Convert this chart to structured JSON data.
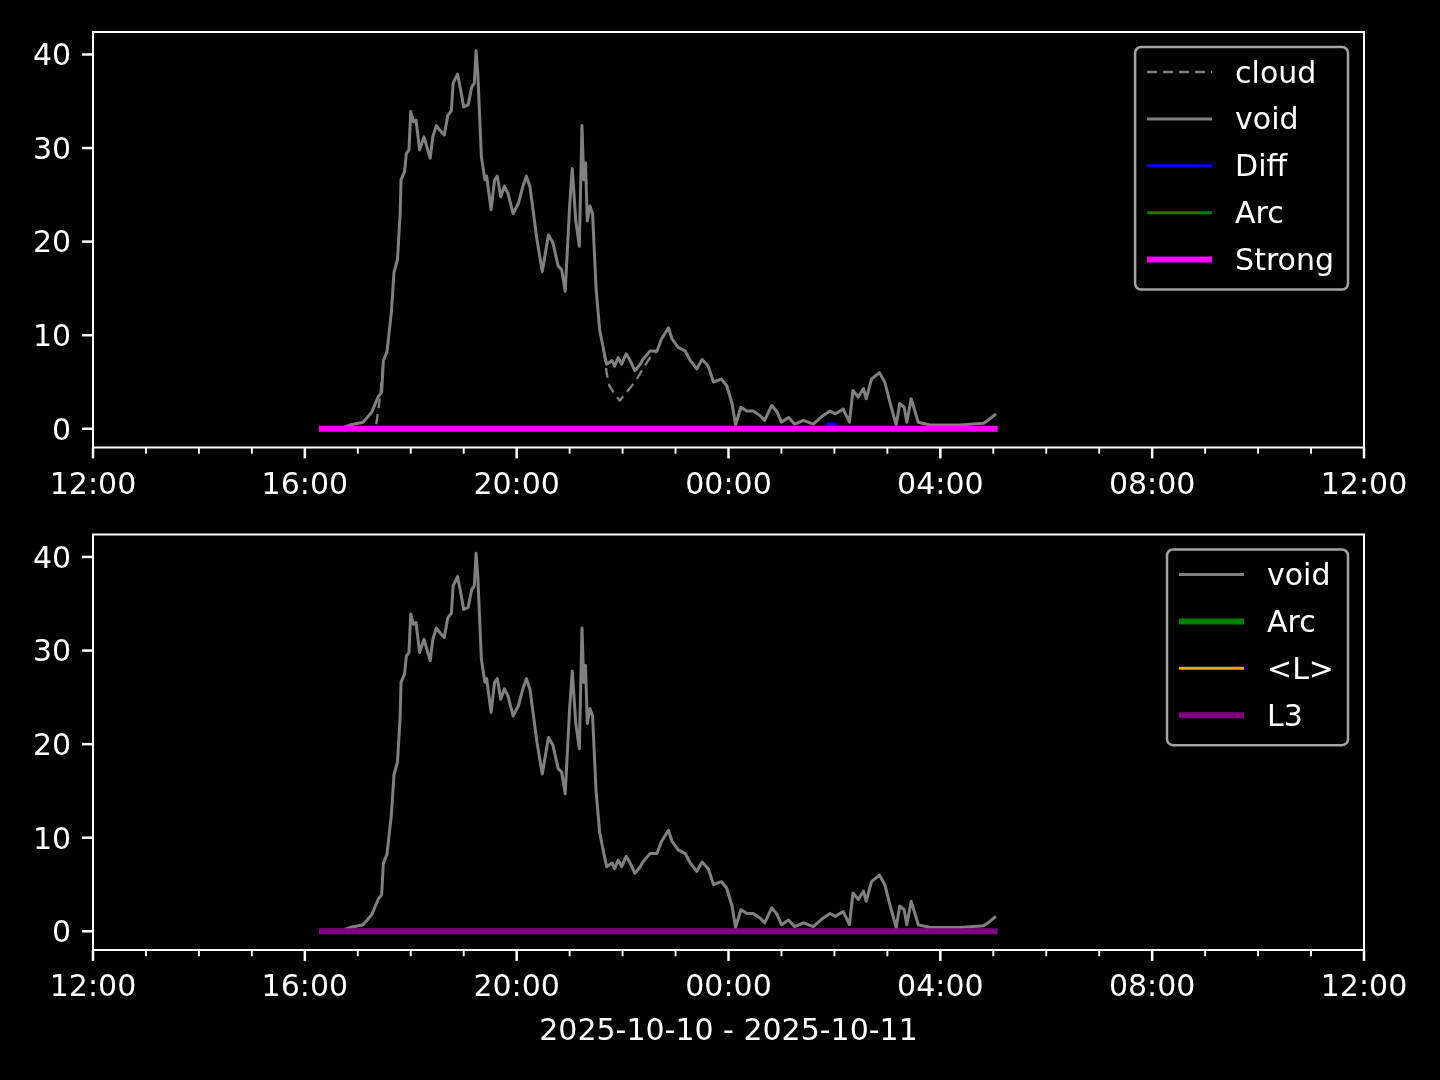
{
  "chart_data": [
    {
      "type": "line",
      "xlim": [
        "2025-10-10T12:00",
        "2025-10-11T12:00"
      ],
      "ylim": [
        -2.0,
        42.4
      ],
      "yticks": [
        0,
        10,
        20,
        30,
        40
      ],
      "xticks": [
        {
          "value": "2025-10-10T12:00",
          "label": "12:00"
        },
        {
          "value": "2025-10-10T13:00",
          "label": null
        },
        {
          "value": "2025-10-10T14:00",
          "label": null
        },
        {
          "value": "2025-10-10T15:00",
          "label": null
        },
        {
          "value": "2025-10-10T16:00",
          "label": "16:00"
        },
        {
          "value": "2025-10-10T17:00",
          "label": null
        },
        {
          "value": "2025-10-10T18:00",
          "label": null
        },
        {
          "value": "2025-10-10T19:00",
          "label": null
        },
        {
          "value": "2025-10-10T20:00",
          "label": "20:00"
        },
        {
          "value": "2025-10-10T21:00",
          "label": null
        },
        {
          "value": "2025-10-10T22:00",
          "label": null
        },
        {
          "value": "2025-10-10T23:00",
          "label": null
        },
        {
          "value": "2025-10-11T00:00",
          "label": "00:00"
        },
        {
          "value": "2025-10-11T01:00",
          "label": null
        },
        {
          "value": "2025-10-11T02:00",
          "label": null
        },
        {
          "value": "2025-10-11T03:00",
          "label": null
        },
        {
          "value": "2025-10-11T04:00",
          "label": "04:00"
        },
        {
          "value": "2025-10-11T05:00",
          "label": null
        },
        {
          "value": "2025-10-11T06:00",
          "label": null
        },
        {
          "value": "2025-10-11T07:00",
          "label": null
        },
        {
          "value": "2025-10-11T08:00",
          "label": "08:00"
        },
        {
          "value": "2025-10-11T09:00",
          "label": null
        },
        {
          "value": "2025-10-11T10:00",
          "label": null
        },
        {
          "value": "2025-10-11T11:00",
          "label": null
        },
        {
          "value": "2025-10-11T12:00",
          "label": "12:00"
        }
      ],
      "legend": "top right",
      "series": [
        {
          "name": "cloud",
          "color": "#808080",
          "line_style": "dashed",
          "x": [
            "2025-10-10T17:21",
            "2025-10-10T17:26",
            "2025-10-10T17:29",
            "2025-10-10T19:00",
            "2025-10-10T21:39",
            "2025-10-10T21:42",
            "2025-10-10T21:45",
            "2025-10-10T21:51",
            "2025-10-10T21:57",
            "2025-10-10T22:00",
            "2025-10-10T22:08",
            "2025-10-10T22:16",
            "2025-10-10T22:23",
            "2025-10-10T22:31",
            "2025-10-10T22:39"
          ],
          "values": [
            0.5,
            4.0,
            7.3,
            null,
            8.2,
            5.9,
            4.6,
            3.7,
            3.0,
            3.4,
            4.3,
            5.3,
            6.4,
            7.6,
            8.3
          ]
        },
        {
          "name": "void",
          "color": "#808080",
          "x": [
            "2025-10-10T16:45",
            "2025-10-10T16:51",
            "2025-10-10T17:06",
            "2025-10-10T17:16",
            "2025-10-10T17:23",
            "2025-10-10T17:27",
            "2025-10-10T17:29",
            "2025-10-10T17:33",
            "2025-10-10T17:38",
            "2025-10-10T17:41",
            "2025-10-10T17:45",
            "2025-10-10T17:48",
            "2025-10-10T17:49",
            "2025-10-10T17:53",
            "2025-10-10T17:55",
            "2025-10-10T17:58",
            "2025-10-10T18:00",
            "2025-10-10T18:03",
            "2025-10-10T18:06",
            "2025-10-10T18:10",
            "2025-10-10T18:15",
            "2025-10-10T18:18",
            "2025-10-10T18:22",
            "2025-10-10T18:25",
            "2025-10-10T18:29",
            "2025-10-10T18:33",
            "2025-10-10T18:38",
            "2025-10-10T18:42",
            "2025-10-10T18:46",
            "2025-10-10T18:48",
            "2025-10-10T18:53",
            "2025-10-10T18:56",
            "2025-10-10T19:00",
            "2025-10-10T19:05",
            "2025-10-10T19:09",
            "2025-10-10T19:12",
            "2025-10-10T19:14",
            "2025-10-10T19:16",
            "2025-10-10T19:20",
            "2025-10-10T19:24",
            "2025-10-10T19:26",
            "2025-10-10T19:31",
            "2025-10-10T19:35",
            "2025-10-10T19:38",
            "2025-10-10T19:42",
            "2025-10-10T19:46",
            "2025-10-10T19:50",
            "2025-10-10T19:56",
            "2025-10-10T20:02",
            "2025-10-10T20:07",
            "2025-10-10T20:11",
            "2025-10-10T20:15",
            "2025-10-10T20:23",
            "2025-10-10T20:29",
            "2025-10-10T20:36",
            "2025-10-10T20:41",
            "2025-10-10T20:47",
            "2025-10-10T20:51",
            "2025-10-10T20:55",
            "2025-10-10T21:00",
            "2025-10-10T21:03",
            "2025-10-10T21:07",
            "2025-10-10T21:11",
            "2025-10-10T21:14",
            "2025-10-10T21:16",
            "2025-10-10T21:18",
            "2025-10-10T21:20",
            "2025-10-10T21:23",
            "2025-10-10T21:26",
            "2025-10-10T21:30",
            "2025-10-10T21:34",
            "2025-10-10T21:39",
            "2025-10-10T21:42",
            "2025-10-10T21:48",
            "2025-10-10T21:51",
            "2025-10-10T21:55",
            "2025-10-10T21:59",
            "2025-10-10T22:04",
            "2025-10-10T22:08",
            "2025-10-10T22:14",
            "2025-10-10T22:20",
            "2025-10-10T22:23",
            "2025-10-10T22:31",
            "2025-10-10T22:39",
            "2025-10-10T22:44",
            "2025-10-10T22:52",
            "2025-10-10T22:56",
            "2025-10-10T23:03",
            "2025-10-10T23:11",
            "2025-10-10T23:16",
            "2025-10-10T23:24",
            "2025-10-10T23:30",
            "2025-10-10T23:37",
            "2025-10-10T23:43",
            "2025-10-10T23:52",
            "2025-10-10T23:58",
            "2025-10-11T00:04",
            "2025-10-11T00:08",
            "2025-10-11T00:14",
            "2025-10-11T00:21",
            "2025-10-11T00:28",
            "2025-10-11T00:36",
            "2025-10-11T00:41",
            "2025-10-11T00:49",
            "2025-10-11T00:55",
            "2025-10-11T01:00",
            "2025-10-11T01:08",
            "2025-10-11T01:15",
            "2025-10-11T01:25",
            "2025-10-11T01:36",
            "2025-10-11T01:47",
            "2025-10-11T01:55",
            "2025-10-11T02:01",
            "2025-10-11T02:10",
            "2025-10-11T02:17",
            "2025-10-11T02:21",
            "2025-10-11T02:27",
            "2025-10-11T02:33",
            "2025-10-11T02:36",
            "2025-10-11T02:42",
            "2025-10-11T02:51",
            "2025-10-11T02:57",
            "2025-10-11T03:03",
            "2025-10-11T03:10",
            "2025-10-11T03:14",
            "2025-10-11T03:19",
            "2025-10-11T03:22",
            "2025-10-11T03:27",
            "2025-10-11T03:35",
            "2025-10-11T03:48",
            "2025-10-11T04:07",
            "2025-10-11T04:22",
            "2025-10-11T04:49",
            "2025-10-11T04:54",
            "2025-10-11T05:03"
          ],
          "values": [
            0.2,
            0.4,
            0.7,
            1.8,
            3.4,
            3.9,
            7.3,
            8.2,
            12.4,
            16.7,
            18.1,
            23.0,
            26.6,
            27.5,
            29.4,
            29.8,
            33.9,
            32.8,
            33.0,
            29.8,
            31.2,
            30.2,
            28.9,
            31.2,
            32.4,
            31.9,
            31.4,
            33.5,
            34.0,
            36.9,
            37.9,
            36.5,
            34.4,
            34.6,
            36.5,
            36.9,
            40.4,
            37.9,
            29.1,
            26.6,
            27.0,
            23.4,
            26.6,
            27.0,
            24.8,
            25.9,
            25.2,
            23.0,
            24.1,
            25.9,
            27.0,
            25.9,
            20.2,
            16.8,
            20.7,
            19.9,
            17.4,
            17.0,
            14.7,
            23.8,
            27.8,
            22.2,
            19.5,
            32.4,
            26.6,
            28.4,
            22.2,
            23.8,
            23.0,
            14.9,
            10.6,
            8.2,
            6.9,
            7.3,
            6.7,
            7.6,
            6.9,
            8.0,
            7.4,
            6.2,
            6.9,
            7.4,
            8.3,
            8.3,
            9.6,
            10.8,
            9.6,
            8.7,
            8.3,
            7.4,
            6.4,
            7.4,
            6.7,
            5.0,
            5.3,
            4.6,
            2.7,
            0.4,
            2.3,
            1.9,
            1.9,
            1.4,
            0.9,
            2.5,
            1.8,
            0.7,
            1.2,
            0.5,
            0.9,
            0.5,
            1.4,
            1.9,
            1.6,
            2.1,
            0.7,
            4.1,
            3.4,
            4.3,
            3.2,
            5.3,
            6.0,
            5.0,
            2.8,
            0.4,
            2.7,
            2.3,
            0.7,
            3.2,
            0.7,
            0.4,
            0.4,
            0.4,
            0.6,
            0.9,
            1.6
          ]
        },
        {
          "name": "Diff",
          "color": "#0000ff",
          "x": [
            "2025-10-11T01:51",
            "2025-10-11T02:03"
          ],
          "values": [
            0.5,
            0.5
          ]
        },
        {
          "name": "Arc",
          "color": "#008000"
        },
        {
          "name": "Strong",
          "color": "#ff00ff",
          "x": [
            "2025-10-10T16:16",
            "2025-10-11T05:05"
          ],
          "values": [
            0,
            0
          ]
        }
      ]
    },
    {
      "type": "line",
      "xlim": [
        "2025-10-10T12:00",
        "2025-10-11T12:00"
      ],
      "ylim": [
        -2.0,
        42.4
      ],
      "yticks": [
        0,
        10,
        20,
        30,
        40
      ],
      "xticks": [
        {
          "value": "2025-10-10T12:00",
          "label": "12:00"
        },
        {
          "value": "2025-10-10T13:00",
          "label": null
        },
        {
          "value": "2025-10-10T14:00",
          "label": null
        },
        {
          "value": "2025-10-10T15:00",
          "label": null
        },
        {
          "value": "2025-10-10T16:00",
          "label": "16:00"
        },
        {
          "value": "2025-10-10T17:00",
          "label": null
        },
        {
          "value": "2025-10-10T18:00",
          "label": null
        },
        {
          "value": "2025-10-10T19:00",
          "label": null
        },
        {
          "value": "2025-10-10T20:00",
          "label": "20:00"
        },
        {
          "value": "2025-10-10T21:00",
          "label": null
        },
        {
          "value": "2025-10-10T22:00",
          "label": null
        },
        {
          "value": "2025-10-10T23:00",
          "label": null
        },
        {
          "value": "2025-10-11T00:00",
          "label": "00:00"
        },
        {
          "value": "2025-10-11T01:00",
          "label": null
        },
        {
          "value": "2025-10-11T02:00",
          "label": null
        },
        {
          "value": "2025-10-11T03:00",
          "label": null
        },
        {
          "value": "2025-10-11T04:00",
          "label": "04:00"
        },
        {
          "value": "2025-10-11T05:00",
          "label": null
        },
        {
          "value": "2025-10-11T06:00",
          "label": null
        },
        {
          "value": "2025-10-11T07:00",
          "label": null
        },
        {
          "value": "2025-10-11T08:00",
          "label": "08:00"
        },
        {
          "value": "2025-10-11T09:00",
          "label": null
        },
        {
          "value": "2025-10-11T10:00",
          "label": null
        },
        {
          "value": "2025-10-11T11:00",
          "label": null
        },
        {
          "value": "2025-10-11T12:00",
          "label": "12:00"
        }
      ],
      "xlabel": "2025-10-10 - 2025-10-11",
      "legend": "top right",
      "series": [
        {
          "name": "void",
          "color": "#808080",
          "x": [
            "2025-10-10T16:45",
            "2025-10-10T16:51",
            "2025-10-10T17:06",
            "2025-10-10T17:16",
            "2025-10-10T17:23",
            "2025-10-10T17:27",
            "2025-10-10T17:29",
            "2025-10-10T17:33",
            "2025-10-10T17:38",
            "2025-10-10T17:41",
            "2025-10-10T17:45",
            "2025-10-10T17:48",
            "2025-10-10T17:49",
            "2025-10-10T17:53",
            "2025-10-10T17:55",
            "2025-10-10T17:58",
            "2025-10-10T18:00",
            "2025-10-10T18:03",
            "2025-10-10T18:06",
            "2025-10-10T18:10",
            "2025-10-10T18:15",
            "2025-10-10T18:18",
            "2025-10-10T18:22",
            "2025-10-10T18:25",
            "2025-10-10T18:29",
            "2025-10-10T18:33",
            "2025-10-10T18:38",
            "2025-10-10T18:42",
            "2025-10-10T18:46",
            "2025-10-10T18:48",
            "2025-10-10T18:53",
            "2025-10-10T18:56",
            "2025-10-10T19:00",
            "2025-10-10T19:05",
            "2025-10-10T19:09",
            "2025-10-10T19:12",
            "2025-10-10T19:14",
            "2025-10-10T19:16",
            "2025-10-10T19:20",
            "2025-10-10T19:24",
            "2025-10-10T19:26",
            "2025-10-10T19:31",
            "2025-10-10T19:35",
            "2025-10-10T19:38",
            "2025-10-10T19:42",
            "2025-10-10T19:46",
            "2025-10-10T19:50",
            "2025-10-10T19:56",
            "2025-10-10T20:02",
            "2025-10-10T20:07",
            "2025-10-10T20:11",
            "2025-10-10T20:15",
            "2025-10-10T20:23",
            "2025-10-10T20:29",
            "2025-10-10T20:36",
            "2025-10-10T20:41",
            "2025-10-10T20:47",
            "2025-10-10T20:51",
            "2025-10-10T20:55",
            "2025-10-10T21:00",
            "2025-10-10T21:03",
            "2025-10-10T21:07",
            "2025-10-10T21:11",
            "2025-10-10T21:14",
            "2025-10-10T21:16",
            "2025-10-10T21:18",
            "2025-10-10T21:20",
            "2025-10-10T21:23",
            "2025-10-10T21:26",
            "2025-10-10T21:30",
            "2025-10-10T21:34",
            "2025-10-10T21:39",
            "2025-10-10T21:42",
            "2025-10-10T21:48",
            "2025-10-10T21:51",
            "2025-10-10T21:55",
            "2025-10-10T21:59",
            "2025-10-10T22:04",
            "2025-10-10T22:08",
            "2025-10-10T22:14",
            "2025-10-10T22:20",
            "2025-10-10T22:23",
            "2025-10-10T22:31",
            "2025-10-10T22:39",
            "2025-10-10T22:44",
            "2025-10-10T22:52",
            "2025-10-10T22:56",
            "2025-10-10T23:03",
            "2025-10-10T23:11",
            "2025-10-10T23:16",
            "2025-10-10T23:24",
            "2025-10-10T23:30",
            "2025-10-10T23:37",
            "2025-10-10T23:43",
            "2025-10-10T23:52",
            "2025-10-10T23:58",
            "2025-10-11T00:04",
            "2025-10-11T00:08",
            "2025-10-11T00:14",
            "2025-10-11T00:21",
            "2025-10-11T00:28",
            "2025-10-11T00:36",
            "2025-10-11T00:41",
            "2025-10-11T00:49",
            "2025-10-11T00:55",
            "2025-10-11T01:00",
            "2025-10-11T01:08",
            "2025-10-11T01:15",
            "2025-10-11T01:25",
            "2025-10-11T01:36",
            "2025-10-11T01:47",
            "2025-10-11T01:55",
            "2025-10-11T02:01",
            "2025-10-11T02:10",
            "2025-10-11T02:17",
            "2025-10-11T02:21",
            "2025-10-11T02:27",
            "2025-10-11T02:33",
            "2025-10-11T02:36",
            "2025-10-11T02:42",
            "2025-10-11T02:51",
            "2025-10-11T02:57",
            "2025-10-11T03:03",
            "2025-10-11T03:10",
            "2025-10-11T03:14",
            "2025-10-11T03:19",
            "2025-10-11T03:22",
            "2025-10-11T03:27",
            "2025-10-11T03:35",
            "2025-10-11T03:48",
            "2025-10-11T04:07",
            "2025-10-11T04:22",
            "2025-10-11T04:49",
            "2025-10-11T04:54",
            "2025-10-11T05:03"
          ],
          "values": [
            0.2,
            0.4,
            0.7,
            1.8,
            3.4,
            3.9,
            7.3,
            8.2,
            12.4,
            16.7,
            18.1,
            23.0,
            26.6,
            27.5,
            29.4,
            29.8,
            33.9,
            32.8,
            33.0,
            29.8,
            31.2,
            30.2,
            28.9,
            31.2,
            32.4,
            31.9,
            31.4,
            33.5,
            34.0,
            36.9,
            37.9,
            36.5,
            34.4,
            34.6,
            36.5,
            36.9,
            40.4,
            37.9,
            29.1,
            26.6,
            27.0,
            23.4,
            26.6,
            27.0,
            24.8,
            25.9,
            25.2,
            23.0,
            24.1,
            25.9,
            27.0,
            25.9,
            20.2,
            16.8,
            20.7,
            19.9,
            17.4,
            17.0,
            14.7,
            23.8,
            27.8,
            22.2,
            19.5,
            32.4,
            26.6,
            28.4,
            22.2,
            23.8,
            23.0,
            14.9,
            10.6,
            8.2,
            6.9,
            7.3,
            6.7,
            7.6,
            6.9,
            8.0,
            7.4,
            6.2,
            6.9,
            7.4,
            8.3,
            8.3,
            9.6,
            10.8,
            9.6,
            8.7,
            8.3,
            7.4,
            6.4,
            7.4,
            6.7,
            5.0,
            5.3,
            4.6,
            2.7,
            0.4,
            2.3,
            1.9,
            1.9,
            1.4,
            0.9,
            2.5,
            1.8,
            0.7,
            1.2,
            0.5,
            0.9,
            0.5,
            1.4,
            1.9,
            1.6,
            2.1,
            0.7,
            4.1,
            3.4,
            4.3,
            3.2,
            5.3,
            6.0,
            5.0,
            2.8,
            0.4,
            2.7,
            2.3,
            0.7,
            3.2,
            0.7,
            0.4,
            0.4,
            0.4,
            0.6,
            0.9,
            1.6
          ]
        },
        {
          "name": "Arc",
          "color": "#008000"
        },
        {
          "name": "<L>",
          "color": "#ffa500"
        },
        {
          "name": "L3",
          "color": "#800080",
          "x": [
            "2025-10-10T16:16",
            "2025-10-11T05:05"
          ],
          "values": [
            0,
            0
          ]
        }
      ]
    }
  ]
}
